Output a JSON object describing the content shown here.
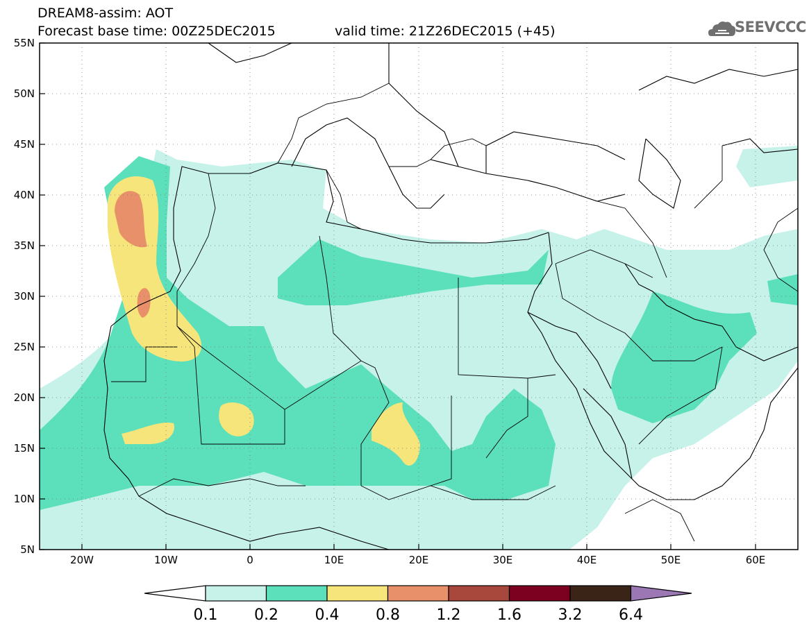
{
  "header": {
    "line1": "DREAM8-assim: AOT",
    "base_time": "Forecast base time: 00Z25DEC2015",
    "valid_time": "valid time: 21Z26DEC2015 (+45)",
    "logo_text": "SEEVCCC"
  },
  "axes": {
    "lon_range": [
      -25,
      65
    ],
    "lat_range": [
      5,
      55
    ],
    "lon_ticks": [
      "20W",
      "10W",
      "0",
      "10E",
      "20E",
      "30E",
      "40E",
      "50E",
      "60E"
    ],
    "lat_ticks": [
      "55N",
      "50N",
      "45N",
      "40N",
      "35N",
      "30N",
      "25N",
      "20N",
      "15N",
      "10N",
      "5N"
    ]
  },
  "legend": {
    "labels": [
      "0.1",
      "0.2",
      "0.4",
      "0.8",
      "1.2",
      "1.6",
      "3.2",
      "6.4"
    ],
    "colors": [
      "#ffffff",
      "#c6f2ea",
      "#5ce0bb",
      "#f6e57a",
      "#e8906a",
      "#a8483c",
      "#7c0020",
      "#3a2418",
      "#9b78b3"
    ]
  },
  "palette": {
    "level1": "#c6f2ea",
    "level2": "#5ce0bb",
    "level3": "#f6e57a",
    "level4": "#e8906a",
    "coast": "#000000",
    "border": "#000000"
  }
}
